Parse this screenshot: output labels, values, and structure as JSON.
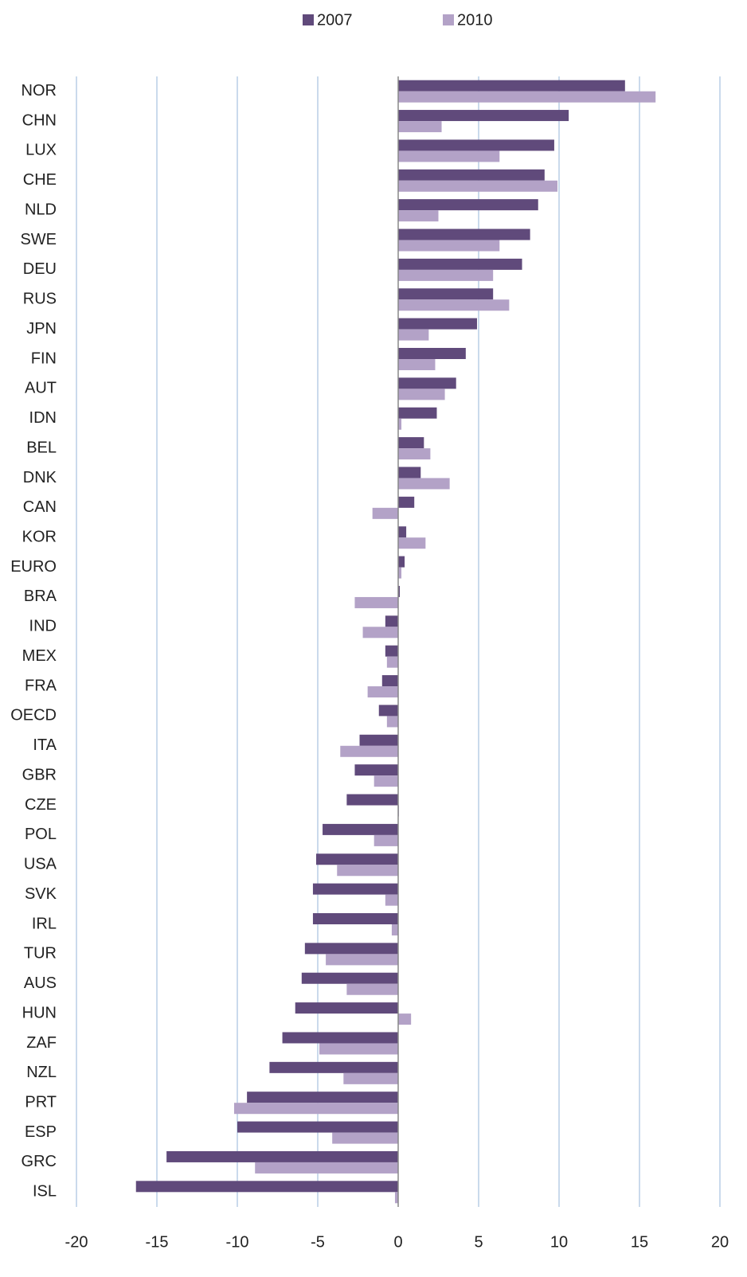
{
  "chart_data": {
    "type": "hbar",
    "categories": [
      "NOR",
      "CHN",
      "LUX",
      "CHE",
      "NLD",
      "SWE",
      "DEU",
      "RUS",
      "JPN",
      "FIN",
      "AUT",
      "IDN",
      "BEL",
      "DNK",
      "CAN",
      "KOR",
      "EURO",
      "BRA",
      "IND",
      "MEX",
      "FRA",
      "OECD",
      "ITA",
      "GBR",
      "CZE",
      "POL",
      "USA",
      "SVK",
      "IRL",
      "TUR",
      "AUS",
      "HUN",
      "ZAF",
      "NZL",
      "PRT",
      "ESP",
      "GRC",
      "ISL"
    ],
    "series": [
      {
        "name": "2007",
        "color": "#604a7b",
        "values": [
          14.1,
          10.6,
          9.7,
          9.1,
          8.7,
          8.2,
          7.7,
          5.9,
          4.9,
          4.2,
          3.6,
          2.4,
          1.6,
          1.4,
          1.0,
          0.5,
          0.4,
          0.1,
          -0.8,
          -0.8,
          -1.0,
          -1.2,
          -2.4,
          -2.7,
          -3.2,
          -4.7,
          -5.1,
          -5.3,
          -5.3,
          -5.8,
          -6.0,
          -6.4,
          -7.2,
          -8.0,
          -9.4,
          -10.0,
          -14.4,
          -16.3
        ]
      },
      {
        "name": "2010",
        "color": "#b3a2c7",
        "values": [
          16.0,
          2.7,
          6.3,
          9.9,
          2.5,
          6.3,
          5.9,
          6.9,
          1.9,
          2.3,
          2.9,
          0.2,
          2.0,
          3.2,
          -1.6,
          1.7,
          0.2,
          -2.7,
          -2.2,
          -0.7,
          -1.9,
          -0.7,
          -3.6,
          -1.5,
          0.05,
          -1.5,
          -3.8,
          -0.8,
          -0.4,
          -4.5,
          -3.2,
          0.8,
          -4.9,
          -3.4,
          -10.2,
          -4.1,
          -8.9,
          -0.2
        ]
      }
    ],
    "xlim": [
      -20,
      20
    ],
    "xticks": [
      -20,
      -15,
      -10,
      -5,
      0,
      5,
      10,
      15,
      20
    ],
    "grid": true,
    "legend": "top"
  }
}
